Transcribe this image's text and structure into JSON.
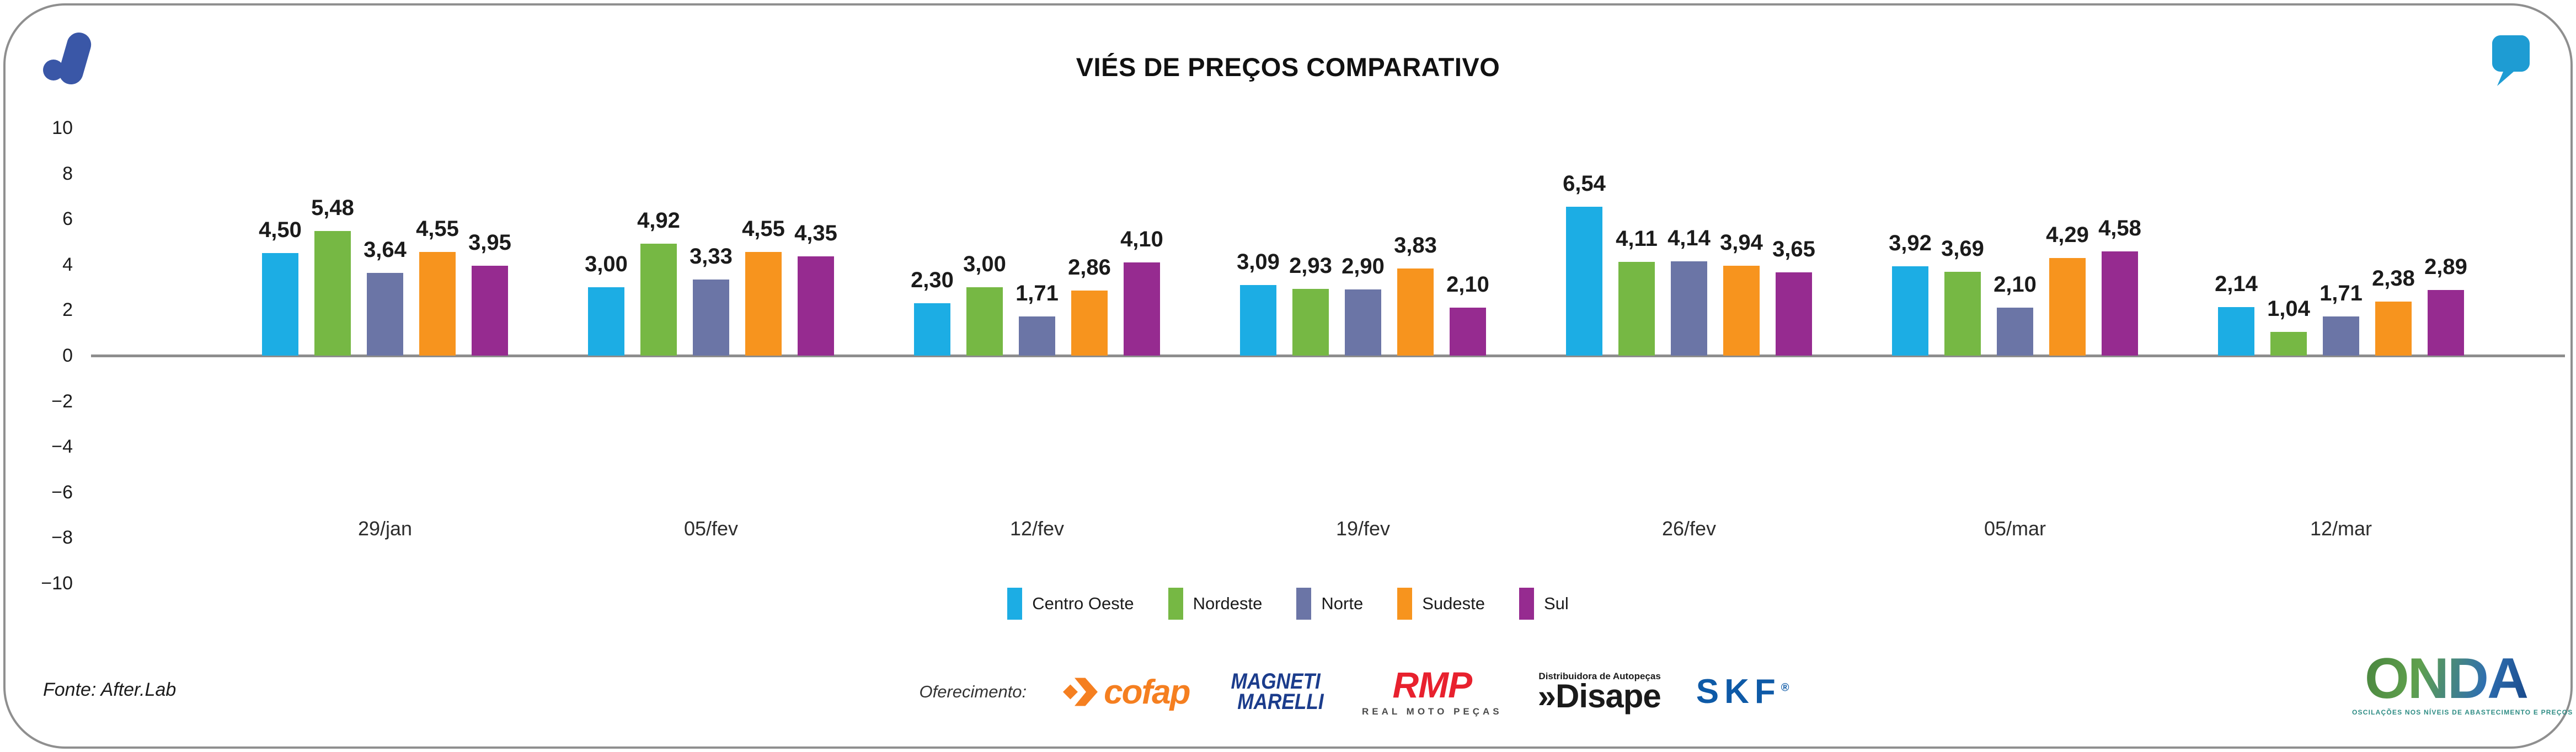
{
  "header": {
    "title": "VIÉS DE PREÇOS COMPARATIVO",
    "brand_mark_color": "#3A57A7",
    "quote_mark_color": "#1E9CD3"
  },
  "chart_data": {
    "type": "bar",
    "title": "VIÉS DE PREÇOS COMPARATIVO",
    "categories": [
      "29/jan",
      "05/fev",
      "12/fev",
      "19/fev",
      "26/fev",
      "05/mar",
      "12/mar"
    ],
    "series": [
      {
        "name": "Centro Oeste",
        "color": "#1CADE4",
        "values": [
          4.5,
          3.0,
          2.3,
          3.09,
          6.54,
          3.92,
          2.14
        ]
      },
      {
        "name": "Nordeste",
        "color": "#76B844",
        "values": [
          5.48,
          4.92,
          3.0,
          2.93,
          4.11,
          3.69,
          1.04
        ]
      },
      {
        "name": "Norte",
        "color": "#6B75A6",
        "values": [
          3.64,
          3.33,
          1.71,
          2.9,
          4.14,
          2.1,
          1.71
        ]
      },
      {
        "name": "Sudeste",
        "color": "#F7941E",
        "values": [
          4.55,
          4.55,
          2.86,
          3.83,
          3.94,
          4.29,
          2.38
        ]
      },
      {
        "name": "Sul",
        "color": "#962B90",
        "values": [
          3.95,
          4.35,
          4.1,
          2.1,
          3.65,
          4.58,
          2.89
        ]
      }
    ],
    "ylim": [
      -10,
      10
    ],
    "yticks": [
      10,
      8,
      6,
      4,
      2,
      0,
      -2,
      -4,
      -6,
      -8,
      -10
    ],
    "grid": false,
    "zero_line_color": "#8D8D8D",
    "legend_position": "bottom",
    "value_label_format": "comma-decimal-2"
  },
  "footer": {
    "source": "Fonte: After.Lab",
    "sponsorship_label": "Oferecimento:",
    "sponsors": [
      {
        "name": "Cofap",
        "text": "cofap",
        "color": "#F57F20"
      },
      {
        "name": "Magneti Marelli",
        "lines": [
          "MAGNETI",
          "MARELLI"
        ],
        "color": "#1B3C8C"
      },
      {
        "name": "RMP",
        "text": "RMP",
        "subtext": "REAL MOTO PEÇAS",
        "color": "#E8212E"
      },
      {
        "name": "Disape",
        "prefix": "»",
        "text": "Disape",
        "subtext": "Distribuidora de Autopeças",
        "color": "#1A1A1A"
      },
      {
        "name": "SKF",
        "text": "SKF",
        "reg": "®",
        "color": "#0E5AA7"
      }
    ],
    "onda": {
      "text": "ONDA",
      "tagline": "OSCILAÇÕES NOS NÍVEIS DE ABASTECIMENTO E PREÇOS",
      "tagline_color": "#2E8C84"
    }
  },
  "frame": {
    "border_color": "#8F8F8F"
  }
}
